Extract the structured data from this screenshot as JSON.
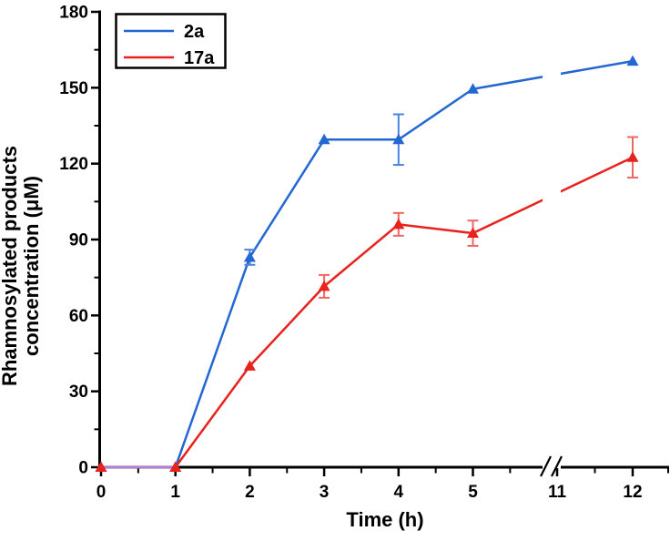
{
  "chart_data": {
    "type": "line",
    "title": "",
    "xlabel": "Time (h)",
    "ylabel_line1": "Rhamnosylated products",
    "ylabel_line2": "concentration (μM)",
    "ylim": [
      0,
      180
    ],
    "y_ticks_major": [
      0,
      30,
      60,
      90,
      120,
      150,
      180
    ],
    "y_ticks_minor": [
      15,
      45,
      75,
      105,
      135,
      165
    ],
    "x_ticks_major": [
      0,
      1,
      2,
      3,
      4,
      5,
      11,
      12
    ],
    "x_ticks_minor": [
      0.5,
      1.5,
      2.5,
      3.5,
      4.5,
      5.5,
      11.5,
      12.5
    ],
    "x_axis_break_between": [
      5.5,
      11
    ],
    "grid": "off",
    "legend_position": "top-left",
    "marker_shape": "triangle-up",
    "series": [
      {
        "name": "2a",
        "color": "#2367d3",
        "error_bar_color": "#4a84e0",
        "x": [
          0,
          1,
          2,
          3,
          4,
          5,
          12
        ],
        "y": [
          0,
          0,
          83,
          129.5,
          129.5,
          149.5,
          160.5
        ],
        "yerr": [
          0,
          0,
          3,
          0,
          10,
          0,
          0
        ]
      },
      {
        "name": "17a",
        "color": "#e8231d",
        "error_bar_color": "#f06663",
        "x": [
          0,
          1,
          2,
          3,
          4,
          5,
          12
        ],
        "y": [
          0,
          0,
          40,
          71.5,
          96,
          92.5,
          122.5
        ],
        "yerr": [
          0,
          0,
          0,
          4.5,
          4.5,
          5,
          8
        ]
      }
    ],
    "overlap_segment": {
      "note": "blue and red series overlap from 0h to 1h at value 0, rendered purple",
      "x": [
        0,
        1
      ],
      "y": [
        0,
        0
      ],
      "color": "#b27fdd"
    }
  }
}
